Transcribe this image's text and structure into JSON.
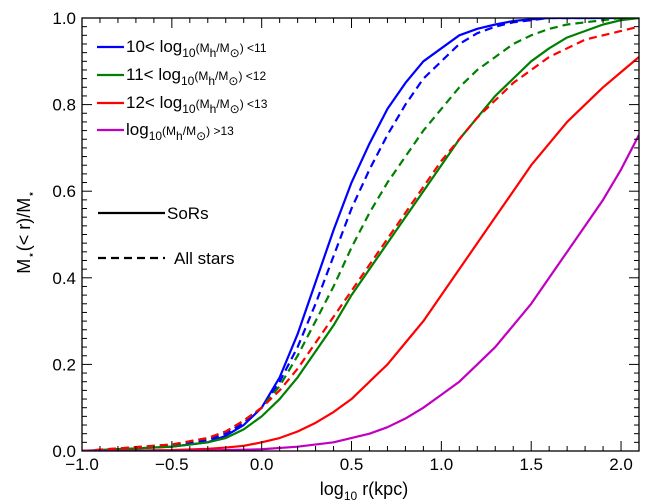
{
  "chart_data": {
    "type": "line",
    "xlabel": "log₁₀ r(kpc)",
    "ylabel": "M⋆(< r)/M⋆",
    "xlim": [
      -1.0,
      2.1
    ],
    "ylim": [
      0.0,
      1.0
    ],
    "x_ticks": [
      -1.0,
      -0.5,
      0.0,
      0.5,
      1.0,
      1.5,
      2.0
    ],
    "x_tick_labels": [
      "−1.0",
      "−0.5",
      "0.0",
      "0.5",
      "1.0",
      "1.5",
      "2.0"
    ],
    "y_ticks": [
      0.0,
      0.2,
      0.4,
      0.6,
      0.8,
      1.0
    ],
    "y_tick_labels": [
      "0.0",
      "0.2",
      "0.4",
      "0.6",
      "0.8",
      "1.0"
    ],
    "grid": false,
    "legend_position": "top-left",
    "series": [
      {
        "name": "10< log₁₀(Mₕ/M☉) <11",
        "color": "#0000ff",
        "style": "solid",
        "x": [
          -1.0,
          -0.5,
          -0.3,
          -0.2,
          -0.1,
          0.0,
          0.1,
          0.2,
          0.3,
          0.4,
          0.5,
          0.6,
          0.7,
          0.8,
          0.9,
          1.0,
          1.1,
          1.2,
          1.3,
          1.4,
          1.5,
          1.6,
          1.8,
          2.1
        ],
        "y": [
          0.0,
          0.01,
          0.02,
          0.035,
          0.06,
          0.1,
          0.17,
          0.27,
          0.39,
          0.51,
          0.62,
          0.71,
          0.79,
          0.85,
          0.9,
          0.93,
          0.96,
          0.975,
          0.985,
          0.993,
          0.997,
          1.0,
          1.0,
          1.0
        ]
      },
      {
        "name": "10< log₁₀(Mₕ/M☉) <11 (All stars)",
        "color": "#0000ff",
        "style": "dashed",
        "x": [
          -1.0,
          -0.5,
          -0.3,
          -0.2,
          -0.1,
          0.0,
          0.1,
          0.2,
          0.3,
          0.4,
          0.5,
          0.6,
          0.7,
          0.8,
          0.9,
          1.0,
          1.1,
          1.2,
          1.3,
          1.4,
          1.5,
          1.6,
          1.8,
          2.1
        ],
        "y": [
          0.0,
          0.012,
          0.025,
          0.04,
          0.065,
          0.1,
          0.16,
          0.24,
          0.34,
          0.45,
          0.56,
          0.65,
          0.73,
          0.8,
          0.86,
          0.9,
          0.94,
          0.965,
          0.98,
          0.99,
          0.995,
          1.0,
          1.0,
          1.0
        ]
      },
      {
        "name": "11< log₁₀(Mₕ/M☉) <12",
        "color": "#008000",
        "style": "solid",
        "x": [
          -1.0,
          -0.5,
          -0.3,
          -0.2,
          -0.1,
          0.0,
          0.1,
          0.2,
          0.3,
          0.4,
          0.5,
          0.6,
          0.7,
          0.8,
          0.9,
          1.0,
          1.1,
          1.2,
          1.3,
          1.4,
          1.5,
          1.6,
          1.7,
          1.8,
          1.9,
          2.0,
          2.1
        ],
        "y": [
          0.0,
          0.01,
          0.02,
          0.03,
          0.05,
          0.08,
          0.12,
          0.17,
          0.23,
          0.29,
          0.36,
          0.42,
          0.48,
          0.54,
          0.6,
          0.66,
          0.72,
          0.77,
          0.82,
          0.86,
          0.9,
          0.93,
          0.955,
          0.97,
          0.985,
          0.995,
          1.0
        ]
      },
      {
        "name": "11< log₁₀(Mₕ/M☉) <12 (All stars)",
        "color": "#008000",
        "style": "dashed",
        "x": [
          -1.0,
          -0.5,
          -0.3,
          -0.2,
          -0.1,
          0.0,
          0.1,
          0.2,
          0.3,
          0.4,
          0.5,
          0.6,
          0.7,
          0.8,
          0.9,
          1.0,
          1.1,
          1.2,
          1.3,
          1.4,
          1.5,
          1.6,
          1.7,
          1.8,
          1.9,
          2.0,
          2.1
        ],
        "y": [
          0.0,
          0.015,
          0.03,
          0.045,
          0.07,
          0.1,
          0.15,
          0.22,
          0.3,
          0.38,
          0.47,
          0.55,
          0.62,
          0.68,
          0.74,
          0.79,
          0.84,
          0.88,
          0.91,
          0.94,
          0.96,
          0.975,
          0.985,
          0.99,
          0.995,
          1.0,
          1.0
        ]
      },
      {
        "name": "12< log₁₀(Mₕ/M☉) <13",
        "color": "#ff0000",
        "style": "solid",
        "x": [
          -1.0,
          -0.5,
          -0.3,
          -0.2,
          -0.1,
          0.0,
          0.1,
          0.2,
          0.3,
          0.4,
          0.5,
          0.6,
          0.7,
          0.8,
          0.9,
          1.0,
          1.1,
          1.2,
          1.3,
          1.4,
          1.5,
          1.6,
          1.7,
          1.8,
          1.9,
          2.0,
          2.1
        ],
        "y": [
          0.0,
          0.002,
          0.005,
          0.008,
          0.012,
          0.02,
          0.03,
          0.045,
          0.065,
          0.09,
          0.12,
          0.16,
          0.2,
          0.25,
          0.3,
          0.36,
          0.42,
          0.48,
          0.54,
          0.6,
          0.66,
          0.71,
          0.76,
          0.8,
          0.84,
          0.875,
          0.91
        ]
      },
      {
        "name": "12< log₁₀(Mₕ/M☉) <13 (All stars)",
        "color": "#ff0000",
        "style": "dashed",
        "x": [
          -1.0,
          -0.5,
          -0.3,
          -0.2,
          -0.1,
          0.0,
          0.1,
          0.2,
          0.3,
          0.4,
          0.5,
          0.6,
          0.7,
          0.8,
          0.9,
          1.0,
          1.1,
          1.2,
          1.3,
          1.4,
          1.5,
          1.6,
          1.7,
          1.8,
          1.9,
          2.0,
          2.1
        ],
        "y": [
          0.0,
          0.015,
          0.03,
          0.045,
          0.07,
          0.1,
          0.14,
          0.19,
          0.25,
          0.31,
          0.37,
          0.43,
          0.49,
          0.55,
          0.61,
          0.67,
          0.72,
          0.77,
          0.81,
          0.85,
          0.88,
          0.91,
          0.93,
          0.95,
          0.96,
          0.97,
          0.98
        ]
      },
      {
        "name": "log₁₀(Mₕ/M☉) >13",
        "color": "#c000c0",
        "style": "solid",
        "x": [
          -1.0,
          -0.5,
          -0.2,
          0.0,
          0.2,
          0.4,
          0.6,
          0.7,
          0.8,
          0.9,
          1.0,
          1.1,
          1.2,
          1.3,
          1.4,
          1.5,
          1.6,
          1.7,
          1.8,
          1.9,
          2.0,
          2.1
        ],
        "y": [
          0.0,
          0.0,
          0.002,
          0.004,
          0.01,
          0.02,
          0.04,
          0.055,
          0.075,
          0.1,
          0.13,
          0.16,
          0.2,
          0.24,
          0.29,
          0.34,
          0.4,
          0.46,
          0.52,
          0.58,
          0.65,
          0.73
        ]
      }
    ],
    "legend": {
      "entries": [
        {
          "prefix": "10<",
          "mid": " <11",
          "color": "#0000ff",
          "style": "solid"
        },
        {
          "prefix": "11<",
          "mid": " <12",
          "color": "#008000",
          "style": "solid"
        },
        {
          "prefix": "12<",
          "mid": " <13",
          "color": "#ff0000",
          "style": "solid"
        },
        {
          "prefix": "",
          "mid": " >13",
          "color": "#c000c0",
          "style": "solid"
        }
      ],
      "log_label": "log",
      "log_sub": "10",
      "mass_open": "(M",
      "mass_h_sub": "h",
      "mass_sep": "/M",
      "mass_sun_sub": "⊙",
      "mass_close": ")",
      "style_entries": [
        {
          "label": "SoRs",
          "style": "solid"
        },
        {
          "label": "All stars",
          "style": "dashed"
        }
      ]
    }
  }
}
